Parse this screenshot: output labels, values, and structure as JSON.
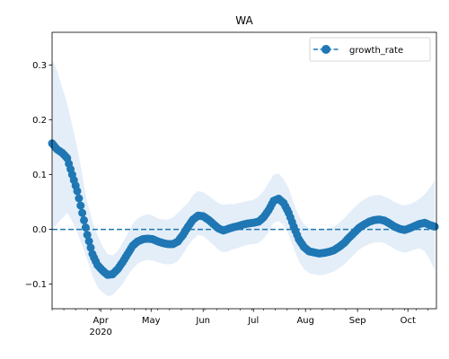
{
  "chart_data": {
    "type": "line",
    "title": "WA",
    "xlabel": "",
    "ylabel": "",
    "x_range": [
      "2020-03-03",
      "2020-10-18"
    ],
    "ylim": [
      -0.145,
      0.36
    ],
    "y_ticks": [
      -0.1,
      0.0,
      0.1,
      0.2,
      0.3
    ],
    "y_tick_labels": [
      "−0.1",
      "0.0",
      "0.1",
      "0.2",
      "0.3"
    ],
    "x_ticks": [
      {
        "date": "2020-04-01",
        "label": "Apr",
        "sublabel": "2020"
      },
      {
        "date": "2020-05-01",
        "label": "May",
        "sublabel": ""
      },
      {
        "date": "2020-06-01",
        "label": "Jun",
        "sublabel": ""
      },
      {
        "date": "2020-07-01",
        "label": "Jul",
        "sublabel": ""
      },
      {
        "date": "2020-08-01",
        "label": "Aug",
        "sublabel": ""
      },
      {
        "date": "2020-09-01",
        "label": "Sep",
        "sublabel": ""
      },
      {
        "date": "2020-10-01",
        "label": "Oct",
        "sublabel": ""
      }
    ],
    "legend": {
      "position": "top-right",
      "entries": [
        "growth_rate"
      ]
    },
    "reference_line": {
      "y": 0.0,
      "style": "dashed"
    },
    "colors": {
      "series": "#1f77b4",
      "band": "#dbe8f6"
    },
    "series": [
      {
        "name": "growth_rate",
        "points": [
          [
            "2020-03-03",
            0.157
          ],
          [
            "2020-03-06",
            0.146
          ],
          [
            "2020-03-09",
            0.14
          ],
          [
            "2020-03-12",
            0.13
          ],
          [
            "2020-03-15",
            0.1
          ],
          [
            "2020-03-18",
            0.07
          ],
          [
            "2020-03-21",
            0.03
          ],
          [
            "2020-03-24",
            -0.01
          ],
          [
            "2020-03-27",
            -0.045
          ],
          [
            "2020-03-30",
            -0.065
          ],
          [
            "2020-04-02",
            -0.075
          ],
          [
            "2020-04-05",
            -0.083
          ],
          [
            "2020-04-08",
            -0.082
          ],
          [
            "2020-04-11",
            -0.073
          ],
          [
            "2020-04-14",
            -0.06
          ],
          [
            "2020-04-17",
            -0.045
          ],
          [
            "2020-04-20",
            -0.03
          ],
          [
            "2020-04-23",
            -0.022
          ],
          [
            "2020-04-26",
            -0.018
          ],
          [
            "2020-04-29",
            -0.017
          ],
          [
            "2020-05-02",
            -0.018
          ],
          [
            "2020-05-05",
            -0.022
          ],
          [
            "2020-05-08",
            -0.025
          ],
          [
            "2020-05-11",
            -0.027
          ],
          [
            "2020-05-14",
            -0.027
          ],
          [
            "2020-05-17",
            -0.022
          ],
          [
            "2020-05-20",
            -0.01
          ],
          [
            "2020-05-23",
            0.005
          ],
          [
            "2020-05-26",
            0.018
          ],
          [
            "2020-05-29",
            0.025
          ],
          [
            "2020-06-01",
            0.024
          ],
          [
            "2020-06-04",
            0.018
          ],
          [
            "2020-06-07",
            0.01
          ],
          [
            "2020-06-10",
            0.002
          ],
          [
            "2020-06-13",
            -0.002
          ],
          [
            "2020-06-16",
            0.001
          ],
          [
            "2020-06-19",
            0.004
          ],
          [
            "2020-06-22",
            0.006
          ],
          [
            "2020-06-25",
            0.009
          ],
          [
            "2020-06-28",
            0.011
          ],
          [
            "2020-07-01",
            0.012
          ],
          [
            "2020-07-04",
            0.014
          ],
          [
            "2020-07-07",
            0.022
          ],
          [
            "2020-07-10",
            0.035
          ],
          [
            "2020-07-13",
            0.052
          ],
          [
            "2020-07-16",
            0.056
          ],
          [
            "2020-07-19",
            0.048
          ],
          [
            "2020-07-22",
            0.03
          ],
          [
            "2020-07-25",
            0.005
          ],
          [
            "2020-07-28",
            -0.018
          ],
          [
            "2020-07-31",
            -0.032
          ],
          [
            "2020-08-03",
            -0.04
          ],
          [
            "2020-08-06",
            -0.042
          ],
          [
            "2020-08-09",
            -0.044
          ],
          [
            "2020-08-12",
            -0.043
          ],
          [
            "2020-08-15",
            -0.041
          ],
          [
            "2020-08-18",
            -0.038
          ],
          [
            "2020-08-21",
            -0.032
          ],
          [
            "2020-08-24",
            -0.025
          ],
          [
            "2020-08-27",
            -0.015
          ],
          [
            "2020-08-30",
            -0.006
          ],
          [
            "2020-09-02",
            0.003
          ],
          [
            "2020-09-05",
            0.009
          ],
          [
            "2020-09-08",
            0.014
          ],
          [
            "2020-09-11",
            0.017
          ],
          [
            "2020-09-14",
            0.018
          ],
          [
            "2020-09-17",
            0.016
          ],
          [
            "2020-09-20",
            0.011
          ],
          [
            "2020-09-23",
            0.005
          ],
          [
            "2020-09-26",
            0.001
          ],
          [
            "2020-09-29",
            -0.001
          ],
          [
            "2020-10-02",
            0.002
          ],
          [
            "2020-10-05",
            0.006
          ],
          [
            "2020-10-08",
            0.01
          ],
          [
            "2020-10-11",
            0.012
          ],
          [
            "2020-10-14",
            0.008
          ],
          [
            "2020-10-17",
            0.005
          ]
        ],
        "band": [
          [
            "2020-03-03",
            0.0,
            0.31
          ],
          [
            "2020-03-06",
            0.01,
            0.29
          ],
          [
            "2020-03-09",
            0.02,
            0.26
          ],
          [
            "2020-03-12",
            0.03,
            0.23
          ],
          [
            "2020-03-15",
            0.015,
            0.19
          ],
          [
            "2020-03-18",
            -0.005,
            0.15
          ],
          [
            "2020-03-21",
            -0.03,
            0.1
          ],
          [
            "2020-03-24",
            -0.055,
            0.05
          ],
          [
            "2020-03-27",
            -0.085,
            0.015
          ],
          [
            "2020-03-30",
            -0.105,
            -0.01
          ],
          [
            "2020-04-02",
            -0.115,
            -0.03
          ],
          [
            "2020-04-05",
            -0.122,
            -0.045
          ],
          [
            "2020-04-08",
            -0.12,
            -0.048
          ],
          [
            "2020-04-11",
            -0.11,
            -0.04
          ],
          [
            "2020-04-14",
            -0.1,
            -0.025
          ],
          [
            "2020-04-17",
            -0.085,
            -0.008
          ],
          [
            "2020-04-20",
            -0.072,
            0.01
          ],
          [
            "2020-04-23",
            -0.063,
            0.02
          ],
          [
            "2020-04-26",
            -0.058,
            0.025
          ],
          [
            "2020-04-29",
            -0.056,
            0.028
          ],
          [
            "2020-05-02",
            -0.057,
            0.025
          ],
          [
            "2020-05-05",
            -0.06,
            0.02
          ],
          [
            "2020-05-08",
            -0.063,
            0.018
          ],
          [
            "2020-05-11",
            -0.064,
            0.018
          ],
          [
            "2020-05-14",
            -0.063,
            0.022
          ],
          [
            "2020-05-17",
            -0.058,
            0.03
          ],
          [
            "2020-05-20",
            -0.045,
            0.04
          ],
          [
            "2020-05-23",
            -0.03,
            0.048
          ],
          [
            "2020-05-26",
            -0.018,
            0.063
          ],
          [
            "2020-05-29",
            -0.01,
            0.07
          ],
          [
            "2020-06-01",
            -0.012,
            0.068
          ],
          [
            "2020-06-04",
            -0.02,
            0.062
          ],
          [
            "2020-06-07",
            -0.028,
            0.055
          ],
          [
            "2020-06-10",
            -0.037,
            0.048
          ],
          [
            "2020-06-13",
            -0.042,
            0.045
          ],
          [
            "2020-06-16",
            -0.04,
            0.046
          ],
          [
            "2020-06-19",
            -0.036,
            0.046
          ],
          [
            "2020-06-22",
            -0.034,
            0.048
          ],
          [
            "2020-06-25",
            -0.03,
            0.05
          ],
          [
            "2020-06-28",
            -0.028,
            0.052
          ],
          [
            "2020-07-01",
            -0.027,
            0.054
          ],
          [
            "2020-07-04",
            -0.025,
            0.06
          ],
          [
            "2020-07-07",
            -0.017,
            0.07
          ],
          [
            "2020-07-10",
            -0.005,
            0.085
          ],
          [
            "2020-07-13",
            0.012,
            0.1
          ],
          [
            "2020-07-16",
            0.015,
            0.102
          ],
          [
            "2020-07-19",
            0.008,
            0.092
          ],
          [
            "2020-07-22",
            -0.01,
            0.075
          ],
          [
            "2020-07-25",
            -0.035,
            0.048
          ],
          [
            "2020-07-28",
            -0.058,
            0.025
          ],
          [
            "2020-07-31",
            -0.072,
            0.01
          ],
          [
            "2020-08-03",
            -0.08,
            0.002
          ],
          [
            "2020-08-06",
            -0.082,
            0.0
          ],
          [
            "2020-08-09",
            -0.084,
            -0.002
          ],
          [
            "2020-08-12",
            -0.083,
            0.0
          ],
          [
            "2020-08-15",
            -0.08,
            0.002
          ],
          [
            "2020-08-18",
            -0.077,
            0.005
          ],
          [
            "2020-08-21",
            -0.071,
            0.012
          ],
          [
            "2020-08-24",
            -0.064,
            0.02
          ],
          [
            "2020-08-27",
            -0.055,
            0.03
          ],
          [
            "2020-08-30",
            -0.046,
            0.04
          ],
          [
            "2020-09-02",
            -0.037,
            0.048
          ],
          [
            "2020-09-05",
            -0.031,
            0.055
          ],
          [
            "2020-09-08",
            -0.027,
            0.06
          ],
          [
            "2020-09-11",
            -0.024,
            0.062
          ],
          [
            "2020-09-14",
            -0.023,
            0.063
          ],
          [
            "2020-09-17",
            -0.025,
            0.06
          ],
          [
            "2020-09-20",
            -0.03,
            0.056
          ],
          [
            "2020-09-23",
            -0.036,
            0.05
          ],
          [
            "2020-09-26",
            -0.04,
            0.046
          ],
          [
            "2020-09-29",
            -0.043,
            0.044
          ],
          [
            "2020-10-02",
            -0.04,
            0.046
          ],
          [
            "2020-10-05",
            -0.037,
            0.05
          ],
          [
            "2020-10-08",
            -0.035,
            0.056
          ],
          [
            "2020-10-11",
            -0.04,
            0.064
          ],
          [
            "2020-10-14",
            -0.055,
            0.075
          ],
          [
            "2020-10-17",
            -0.075,
            0.09
          ]
        ]
      }
    ]
  }
}
